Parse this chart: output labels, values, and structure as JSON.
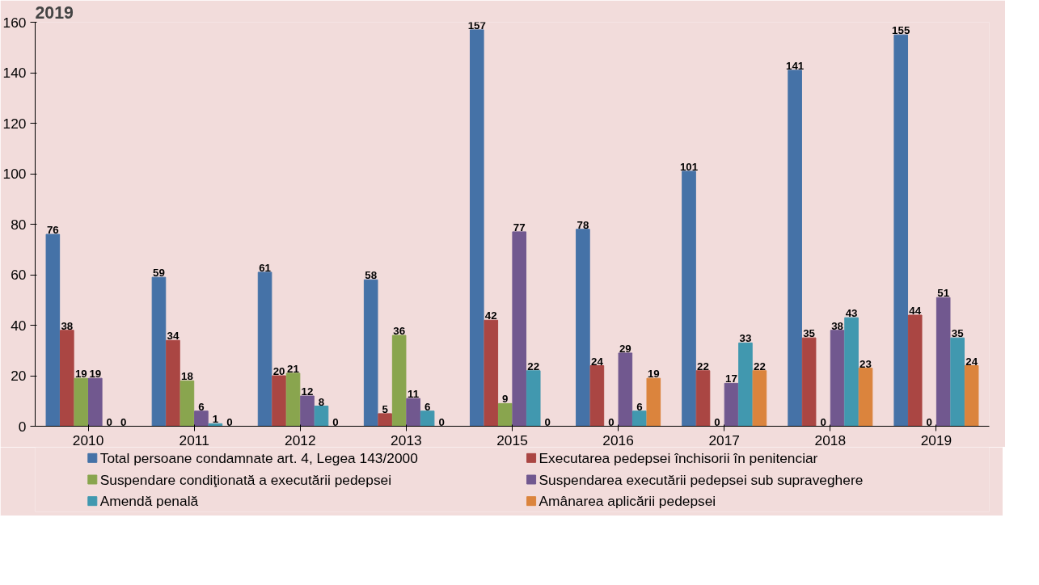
{
  "chart_data": {
    "type": "bar",
    "title": "2019",
    "categories": [
      "2010",
      "2011",
      "2012",
      "2013",
      "2015",
      "2016",
      "2017",
      "2018",
      "2019"
    ],
    "series": [
      {
        "name": "Total persoane condamnate art. 4, Legea 143/2000",
        "color": "#4572a7",
        "values": [
          76,
          59,
          61,
          58,
          157,
          78,
          101,
          141,
          155
        ]
      },
      {
        "name": "Executarea pedepsei închisorii în penitenciar",
        "color": "#aa4643",
        "values": [
          38,
          34,
          20,
          5,
          42,
          24,
          22,
          35,
          44
        ]
      },
      {
        "name": "Suspendare condiţionată a executării pedepsei",
        "color": "#89a54e",
        "values": [
          19,
          18,
          21,
          36,
          9,
          0,
          0,
          0,
          0
        ]
      },
      {
        "name": "Suspendarea executării pedepsei sub supraveghere",
        "color": "#71588f",
        "values": [
          19,
          6,
          12,
          11,
          77,
          29,
          17,
          38,
          51
        ]
      },
      {
        "name": "Amendă penală",
        "color": "#4198af",
        "values": [
          0,
          1,
          8,
          6,
          22,
          6,
          33,
          43,
          35
        ]
      },
      {
        "name": "Amânarea aplicării pedepsei",
        "color": "#db843d",
        "values": [
          0,
          0,
          0,
          0,
          0,
          19,
          22,
          23,
          24
        ]
      }
    ],
    "ylim": [
      0,
      160
    ],
    "yticks": [
      0,
      20,
      40,
      60,
      80,
      100,
      120,
      140,
      160
    ],
    "grid": false,
    "legend": "bottom",
    "data_labels": true
  }
}
